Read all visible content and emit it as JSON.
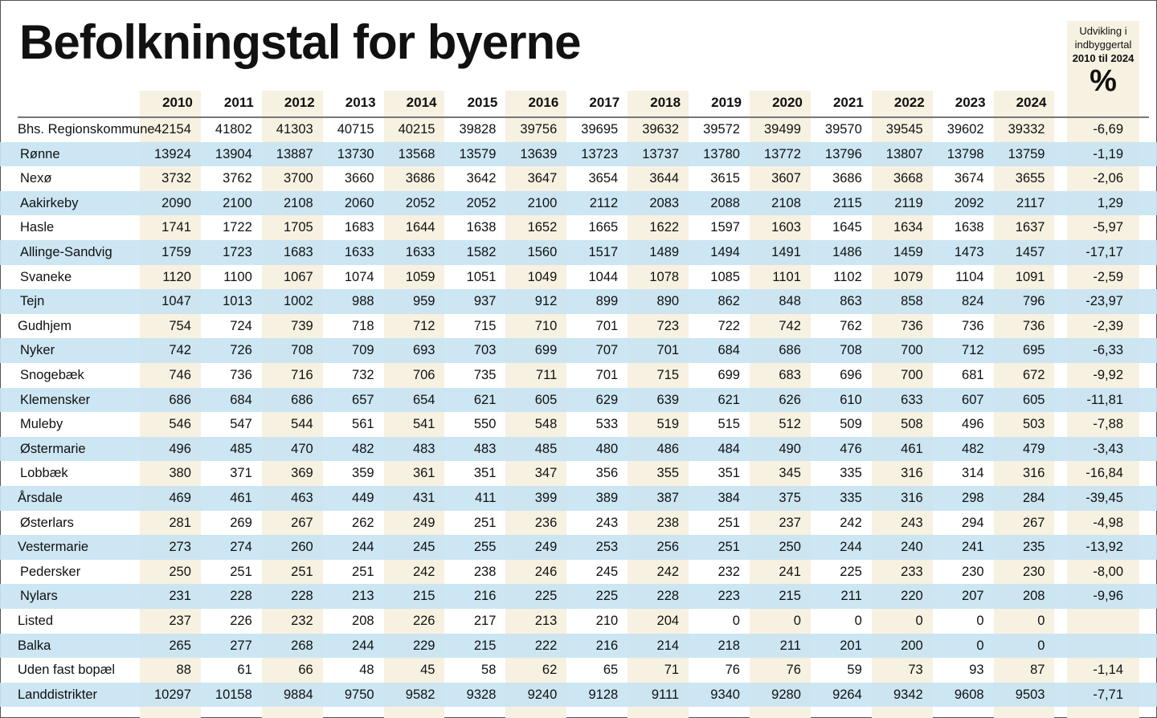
{
  "title": "Befolkningstal for byerne",
  "pct_header": {
    "line1": "Udvikling i",
    "line2": "indbyggertal",
    "line3": "2010 til 2024",
    "symbol": "%"
  },
  "colors": {
    "stripe": "#f7f1e1",
    "row_blue": "#c8e4f2"
  },
  "years": [
    "2010",
    "2011",
    "2012",
    "2013",
    "2014",
    "2015",
    "2016",
    "2017",
    "2018",
    "2019",
    "2020",
    "2021",
    "2022",
    "2023",
    "2024"
  ],
  "rows": [
    {
      "name": "Bhs. Regionskommune",
      "values": [
        "42154",
        "41802",
        "41303",
        "40715",
        "40215",
        "39828",
        "39756",
        "39695",
        "39632",
        "39572",
        "39499",
        "39570",
        "39545",
        "39602",
        "39332"
      ],
      "pct": "-6,69"
    },
    {
      "name": "Rønne",
      "values": [
        "13924",
        "13904",
        "13887",
        "13730",
        "13568",
        "13579",
        "13639",
        "13723",
        "13737",
        "13780",
        "13772",
        "13796",
        "13807",
        "13798",
        "13759"
      ],
      "pct": "-1,19"
    },
    {
      "name": "Nexø",
      "values": [
        "3732",
        "3762",
        "3700",
        "3660",
        "3686",
        "3642",
        "3647",
        "3654",
        "3644",
        "3615",
        "3607",
        "3686",
        "3668",
        "3674",
        "3655"
      ],
      "pct": "-2,06"
    },
    {
      "name": "Aakirkeby",
      "values": [
        "2090",
        "2100",
        "2108",
        "2060",
        "2052",
        "2052",
        "2100",
        "2112",
        "2083",
        "2088",
        "2108",
        "2115",
        "2119",
        "2092",
        "2117"
      ],
      "pct": "1,29"
    },
    {
      "name": "Hasle",
      "values": [
        "1741",
        "1722",
        "1705",
        "1683",
        "1644",
        "1638",
        "1652",
        "1665",
        "1622",
        "1597",
        "1603",
        "1645",
        "1634",
        "1638",
        "1637"
      ],
      "pct": "-5,97"
    },
    {
      "name": "Allinge-Sandvig",
      "values": [
        "1759",
        "1723",
        "1683",
        "1633",
        "1633",
        "1582",
        "1560",
        "1517",
        "1489",
        "1494",
        "1491",
        "1486",
        "1459",
        "1473",
        "1457"
      ],
      "pct": "-17,17"
    },
    {
      "name": "Svaneke",
      "values": [
        "1120",
        "1100",
        "1067",
        "1074",
        "1059",
        "1051",
        "1049",
        "1044",
        "1078",
        "1085",
        "1101",
        "1102",
        "1079",
        "1104",
        "1091"
      ],
      "pct": "-2,59"
    },
    {
      "name": "Tejn",
      "values": [
        "1047",
        "1013",
        "1002",
        "988",
        "959",
        "937",
        "912",
        "899",
        "890",
        "862",
        "848",
        "863",
        "858",
        "824",
        "796"
      ],
      "pct": "-23,97"
    },
    {
      "name": "Gudhjem",
      "values": [
        "754",
        "724",
        "739",
        "718",
        "712",
        "715",
        "710",
        "701",
        "723",
        "722",
        "742",
        "762",
        "736",
        "736",
        "736"
      ],
      "pct": "-2,39"
    },
    {
      "name": "Nyker",
      "values": [
        "742",
        "726",
        "708",
        "709",
        "693",
        "703",
        "699",
        "707",
        "701",
        "684",
        "686",
        "708",
        "700",
        "712",
        "695"
      ],
      "pct": "-6,33"
    },
    {
      "name": "Snogebæk",
      "values": [
        "746",
        "736",
        "716",
        "732",
        "706",
        "735",
        "711",
        "701",
        "715",
        "699",
        "683",
        "696",
        "700",
        "681",
        "672"
      ],
      "pct": "-9,92"
    },
    {
      "name": "Klemensker",
      "values": [
        "686",
        "684",
        "686",
        "657",
        "654",
        "621",
        "605",
        "629",
        "639",
        "621",
        "626",
        "610",
        "633",
        "607",
        "605"
      ],
      "pct": "-11,81"
    },
    {
      "name": "Muleby",
      "values": [
        "546",
        "547",
        "544",
        "561",
        "541",
        "550",
        "548",
        "533",
        "519",
        "515",
        "512",
        "509",
        "508",
        "496",
        "503"
      ],
      "pct": "-7,88"
    },
    {
      "name": "Østermarie",
      "values": [
        "496",
        "485",
        "470",
        "482",
        "483",
        "483",
        "485",
        "480",
        "486",
        "484",
        "490",
        "476",
        "461",
        "482",
        "479"
      ],
      "pct": "-3,43"
    },
    {
      "name": "Lobbæk",
      "values": [
        "380",
        "371",
        "369",
        "359",
        "361",
        "351",
        "347",
        "356",
        "355",
        "351",
        "345",
        "335",
        "316",
        "314",
        "316"
      ],
      "pct": "-16,84"
    },
    {
      "name": "Årsdale",
      "values": [
        "469",
        "461",
        "463",
        "449",
        "431",
        "411",
        "399",
        "389",
        "387",
        "384",
        "375",
        "335",
        "316",
        "298",
        "284"
      ],
      "pct": "-39,45"
    },
    {
      "name": "Østerlars",
      "values": [
        "281",
        "269",
        "267",
        "262",
        "249",
        "251",
        "236",
        "243",
        "238",
        "251",
        "237",
        "242",
        "243",
        "294",
        "267"
      ],
      "pct": "-4,98"
    },
    {
      "name": "Vestermarie",
      "values": [
        "273",
        "274",
        "260",
        "244",
        "245",
        "255",
        "249",
        "253",
        "256",
        "251",
        "250",
        "244",
        "240",
        "241",
        "235"
      ],
      "pct": "-13,92"
    },
    {
      "name": "Pedersker",
      "values": [
        "250",
        "251",
        "251",
        "251",
        "242",
        "238",
        "246",
        "245",
        "242",
        "232",
        "241",
        "225",
        "233",
        "230",
        "230"
      ],
      "pct": "-8,00"
    },
    {
      "name": "Nylars",
      "values": [
        "231",
        "228",
        "228",
        "213",
        "215",
        "216",
        "225",
        "225",
        "228",
        "223",
        "215",
        "211",
        "220",
        "207",
        "208"
      ],
      "pct": "-9,96"
    },
    {
      "name": "Listed",
      "values": [
        "237",
        "226",
        "232",
        "208",
        "226",
        "217",
        "213",
        "210",
        "204",
        "0",
        "0",
        "0",
        "0",
        "0",
        "0"
      ],
      "pct": ""
    },
    {
      "name": "Balka",
      "values": [
        "265",
        "277",
        "268",
        "244",
        "229",
        "215",
        "222",
        "216",
        "214",
        "218",
        "211",
        "201",
        "200",
        "0",
        "0"
      ],
      "pct": ""
    },
    {
      "name": "Uden fast bopæl",
      "values": [
        "88",
        "61",
        "66",
        "48",
        "45",
        "58",
        "62",
        "65",
        "71",
        "76",
        "76",
        "59",
        "73",
        "93",
        "87"
      ],
      "pct": "-1,14"
    },
    {
      "name": "Landdistrikter",
      "values": [
        "10297",
        "10158",
        "9884",
        "9750",
        "9582",
        "9328",
        "9240",
        "9128",
        "9111",
        "9340",
        "9280",
        "9264",
        "9342",
        "9608",
        "9503"
      ],
      "pct": "-7,71"
    }
  ]
}
